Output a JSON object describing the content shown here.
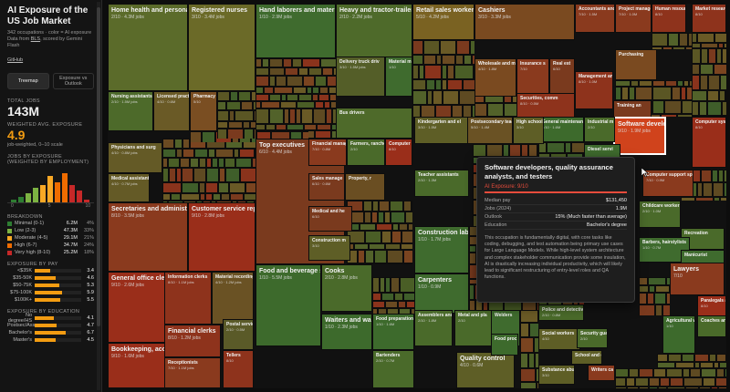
{
  "sidebar": {
    "title": "AI Exposure of the US Job Market",
    "subtitle": "342 occupations · color = AI exposure",
    "source_prefix": "Data from",
    "source_bls": "BLS",
    "source_suffix": ", scored by Gemini Flash",
    "github": "GitHub",
    "view_buttons": [
      "Treemap",
      "Exposure vs Outlook"
    ],
    "total_jobs_label": "TOTAL JOBS",
    "total_jobs": "143M",
    "avg_label": "WEIGHTED AVG. EXPOSURE",
    "avg_value": "4.9",
    "avg_caption": "job-weighted, 0–10 scale",
    "hist_label": "JOBS BY EXPOSURE (WEIGHTED BY EMPLOYMENT)",
    "hist_ticks": [
      "0",
      "5",
      "10"
    ],
    "hist_values": [
      1,
      2,
      3,
      5,
      6,
      9,
      7,
      10,
      6,
      4,
      1
    ],
    "breakdown_label": "BREAKDOWN",
    "breakdown": [
      {
        "label": "Minimal (0-1)",
        "value": "6.2M",
        "pct": "4%",
        "color": "#2e7d32"
      },
      {
        "label": "Low (2-3)",
        "value": "47.3M",
        "pct": "33%",
        "color": "#7cb342"
      },
      {
        "label": "Moderate (4-5)",
        "value": "29.1M",
        "pct": "21%",
        "color": "#f9a825"
      },
      {
        "label": "High (6-7)",
        "value": "34.7M",
        "pct": "24%",
        "color": "#ef6c00"
      },
      {
        "label": "Very high (8-10)",
        "value": "25.2M",
        "pct": "18%",
        "color": "#c62828"
      }
    ],
    "pay_label": "EXPOSURE BY PAY",
    "pay": [
      {
        "label": "<$35K",
        "value": "3.4",
        "frac": 0.34
      },
      {
        "label": "$35-50K",
        "value": "4.6",
        "frac": 0.46
      },
      {
        "label": "$50-75K",
        "value": "5.3",
        "frac": 0.53
      },
      {
        "label": "$75-100K",
        "value": "5.9",
        "frac": 0.59
      },
      {
        "label": "$100K+",
        "value": "5.5",
        "frac": 0.55
      }
    ],
    "edu_label": "EXPOSURE BY EDUCATION",
    "edu": [
      {
        "label": "No degree/HS",
        "value": "4.1",
        "frac": 0.41
      },
      {
        "label": "Postsec/Assoc",
        "value": "4.7",
        "frac": 0.47
      },
      {
        "label": "Bachelor's",
        "value": "6.7",
        "frac": 0.67
      },
      {
        "label": "Master's",
        "value": "4.5",
        "frac": 0.45
      }
    ]
  },
  "cells": [
    {
      "title": "Home health and personal",
      "sub": "2/10 · 4.3M jobs",
      "color": "#5b6b2a"
    },
    {
      "title": "Registered nurses",
      "sub": "3/10 · 3.4M jobs",
      "color": "#6b6a28"
    },
    {
      "title": "Hand laborers and material",
      "sub": "1/10 · 2.9M jobs",
      "color": "#3f6b2e"
    },
    {
      "title": "Heavy and tractor-trailer",
      "sub": "2/10 · 2.2M jobs",
      "color": "#4e6a2a"
    },
    {
      "title": "Retail sales workers",
      "sub": "5/10 · 4.2M jobs",
      "color": "#7a6222"
    },
    {
      "title": "Cashiers",
      "sub": "3/10 · 3.3M jobs",
      "color": "#7a4a20"
    },
    {
      "title": "Secretaries and administrati",
      "sub": "8/10 · 3.5M jobs",
      "color": "#8a3a1e"
    },
    {
      "title": "Customer service rep",
      "sub": "9/10 · 2.8M jobs",
      "color": "#9a2e1a"
    },
    {
      "title": "Top executives",
      "sub": "6/10 · 4.4M jobs",
      "color": "#7a3a1e"
    },
    {
      "title": "General office clerks",
      "sub": "9/10 · 2.6M jobs",
      "color": "#9a2e1a"
    },
    {
      "title": "Food and beverage se",
      "sub": "1/10 · 5.5M jobs",
      "color": "#3d6a2c"
    },
    {
      "title": "Cooks",
      "sub": "2/10 · 2.8M jobs",
      "color": "#4a6a2a"
    },
    {
      "title": "Bookkeeping, accou",
      "sub": "9/10 · 1.6M jobs",
      "color": "#9a2e1a"
    },
    {
      "title": "Receptionists",
      "sub": "7/10 · 1.1M jobs",
      "color": "#8a3a1e"
    },
    {
      "title": "Financial clerks",
      "sub": "8/10 · 1.2M jobs",
      "color": "#8e331c"
    },
    {
      "title": "Information clerks",
      "sub": "8/10 · 1.1M jobs",
      "color": "#8e331c"
    },
    {
      "title": "Material recording",
      "sub": "4/10 · 1.2M jobs",
      "color": "#6a5224"
    },
    {
      "title": "Postal servic",
      "sub": "2/10 · 0.5M",
      "color": "#5a5a28"
    },
    {
      "title": "Tellers",
      "sub": "8/10",
      "color": "#8e331c"
    },
    {
      "title": "Waiters and waitres",
      "sub": "1/10 · 2.3M jobs",
      "color": "#3d6a2c"
    },
    {
      "title": "Food preparation w",
      "sub": "1/10 · 1.6M",
      "color": "#3d6a2c"
    },
    {
      "title": "Bartenders",
      "sub": "2/10 · 0.7M",
      "color": "#4a6a2a"
    },
    {
      "title": "Nursing assistants a",
      "sub": "2/10 · 1.5M jobs",
      "color": "#4d6a2a"
    },
    {
      "title": "Licensed pract",
      "sub": "4/10 · 0.6M",
      "color": "#6a5a26"
    },
    {
      "title": "Pharmacy",
      "sub": "5/10",
      "color": "#7a4e22"
    },
    {
      "title": "Physicians and surg",
      "sub": "4/10 · 0.8M jobs",
      "color": "#645a26"
    },
    {
      "title": "Medical assistants",
      "sub": "4/10 · 0.7M jobs",
      "color": "#645a26"
    },
    {
      "title": "Delivery truck driv",
      "sub": "3/10 · 1.5M jobs",
      "color": "#545e28"
    },
    {
      "title": "Material mo",
      "sub": "1/10",
      "color": "#3f6b2e"
    },
    {
      "title": "Bus drivers",
      "sub": "",
      "color": "#4e6a2a"
    },
    {
      "title": "Wholesale and man",
      "sub": "4/10 · 1.8M",
      "color": "#7a4a20"
    },
    {
      "title": "Insurance s",
      "sub": "7/10",
      "color": "#8a3a1e"
    },
    {
      "title": "Real est",
      "sub": "6/10",
      "color": "#7a3a1e"
    },
    {
      "title": "Securities, comm",
      "sub": "8/10 · 0.5M",
      "color": "#8e331c"
    },
    {
      "title": "Accountants and",
      "sub": "7/10 · 1.5M",
      "color": "#8a3a1e"
    },
    {
      "title": "Project manager",
      "sub": "7/10 · 1.0M",
      "color": "#8a3a1e"
    },
    {
      "title": "Human resourc",
      "sub": "8/10",
      "color": "#8e331c"
    },
    {
      "title": "Market researc",
      "sub": "8/10",
      "color": "#8e331c"
    },
    {
      "title": "Purchasing",
      "sub": "",
      "color": "#7a4a20"
    },
    {
      "title": "Management ana",
      "sub": "8/10 · 1.0M",
      "color": "#8e331c"
    },
    {
      "title": "Training an",
      "sub": "",
      "color": "#7a3a1e"
    },
    {
      "title": "Software developers",
      "sub": "9/10 · 1.9M jobs",
      "color": "#d0431c"
    },
    {
      "title": "Computer syst",
      "sub": "8/10",
      "color": "#9a2e1a"
    },
    {
      "title": "Computer support sp",
      "sub": "7/10 · 0.9M",
      "color": "#8a3a1e"
    },
    {
      "title": "General maintenanc",
      "sub": "1/10 · 1.6M",
      "color": "#3d6a2c"
    },
    {
      "title": "Industrial m",
      "sub": "2/10",
      "color": "#4a6a2a"
    },
    {
      "title": "Diesel servi",
      "sub": "",
      "color": "#3f6b2e"
    },
    {
      "title": "Kindergarten and el",
      "sub": "3/10 · 1.5M",
      "color": "#5e5e26"
    },
    {
      "title": "Postsecondary teach",
      "sub": "5/10 · 1.4M",
      "color": "#6a5224"
    },
    {
      "title": "High school te",
      "sub": "3/10",
      "color": "#5e5e26"
    },
    {
      "title": "Teacher assistants",
      "sub": "2/10 · 1.3M",
      "color": "#4a6a2a"
    },
    {
      "title": "Construction laborers",
      "sub": "1/10 · 1.7M jobs",
      "color": "#3f6b2e"
    },
    {
      "title": "Carpenters",
      "sub": "1/10 · 0.9M",
      "color": "#3f6b2e"
    },
    {
      "title": "Assemblers and fa",
      "sub": "2/10 · 1.8M",
      "color": "#4a6a2a"
    },
    {
      "title": "Metal and pla",
      "sub": "2/10",
      "color": "#4a6a2a"
    },
    {
      "title": "Welders",
      "sub": "",
      "color": "#3f6b2e"
    },
    {
      "title": "Quality control",
      "sub": "4/10 · 0.6M",
      "color": "#5e5e26"
    },
    {
      "title": "Food proc",
      "sub": "",
      "color": "#3d6a2c"
    },
    {
      "title": "Sales manage",
      "sub": "6/10 · 0.6M",
      "color": "#7a3a1e"
    },
    {
      "title": "Property, r",
      "sub": "",
      "color": "#6a4e22"
    },
    {
      "title": "Financial manage",
      "sub": "7/10 · 0.8M",
      "color": "#8a3a1e"
    },
    {
      "title": "Farmers, ranche",
      "sub": "2/10",
      "color": "#4a6a2a"
    },
    {
      "title": "Computer ar",
      "sub": "8/10",
      "color": "#9a2e1a"
    },
    {
      "title": "Medical and he",
      "sub": "6/10",
      "color": "#7a3a1e"
    },
    {
      "title": "Construction m",
      "sub": "3/10",
      "color": "#5e5e26"
    },
    {
      "title": "Childcare workers",
      "sub": "2/10 · 1.0M",
      "color": "#4a6a2a"
    },
    {
      "title": "Recreation",
      "sub": "",
      "color": "#4a6a2a"
    },
    {
      "title": "Barbers, hairstylists",
      "sub": "1/10 · 0.7M",
      "color": "#3f6b2e"
    },
    {
      "title": "Manicurist",
      "sub": "",
      "color": "#3f6b2e"
    },
    {
      "title": "Lawyers",
      "sub": "7/10",
      "color": "#8a3a1e"
    },
    {
      "title": "Paralegals and",
      "sub": "8/10",
      "color": "#9a2e1a"
    },
    {
      "title": "Agricultural w",
      "sub": "1/10",
      "color": "#3d6a2c"
    },
    {
      "title": "Coaches and",
      "sub": "",
      "color": "#4a6a2a"
    },
    {
      "title": "Police and detective",
      "sub": "2/10 · 0.8M",
      "color": "#4a6a2a"
    },
    {
      "title": "Social workers",
      "sub": "4/10",
      "color": "#5e5e26"
    },
    {
      "title": "Security guar",
      "sub": "2/10",
      "color": "#4a6a2a"
    },
    {
      "title": "School and car",
      "sub": "",
      "color": "#5e5e26"
    },
    {
      "title": "Substance abus",
      "sub": "3/10",
      "color": "#5e5e26"
    },
    {
      "title": "Writers ca",
      "sub": "",
      "color": "#8a3a1e"
    }
  ],
  "tooltip": {
    "title": "Software developers, quality assurance analysts, and testers",
    "exposure": "AI Exposure: 9/10",
    "rows": [
      {
        "k": "Median pay",
        "v": "$131,450"
      },
      {
        "k": "Jobs (2024)",
        "v": "1.9M"
      },
      {
        "k": "Outlook",
        "v": "15% (Much faster than average)"
      },
      {
        "k": "Education",
        "v": "Bachelor's degree"
      }
    ],
    "description": "This occupation is fundamentally digital, with core tasks like coding, debugging, and test automation being primary use cases for Large Language Models. While high-level system architecture and complex stakeholder communication provide some insulation, AI is drastically increasing individual productivity, which will likely lead to significant restructuring of entry-level roles and QA functions."
  }
}
